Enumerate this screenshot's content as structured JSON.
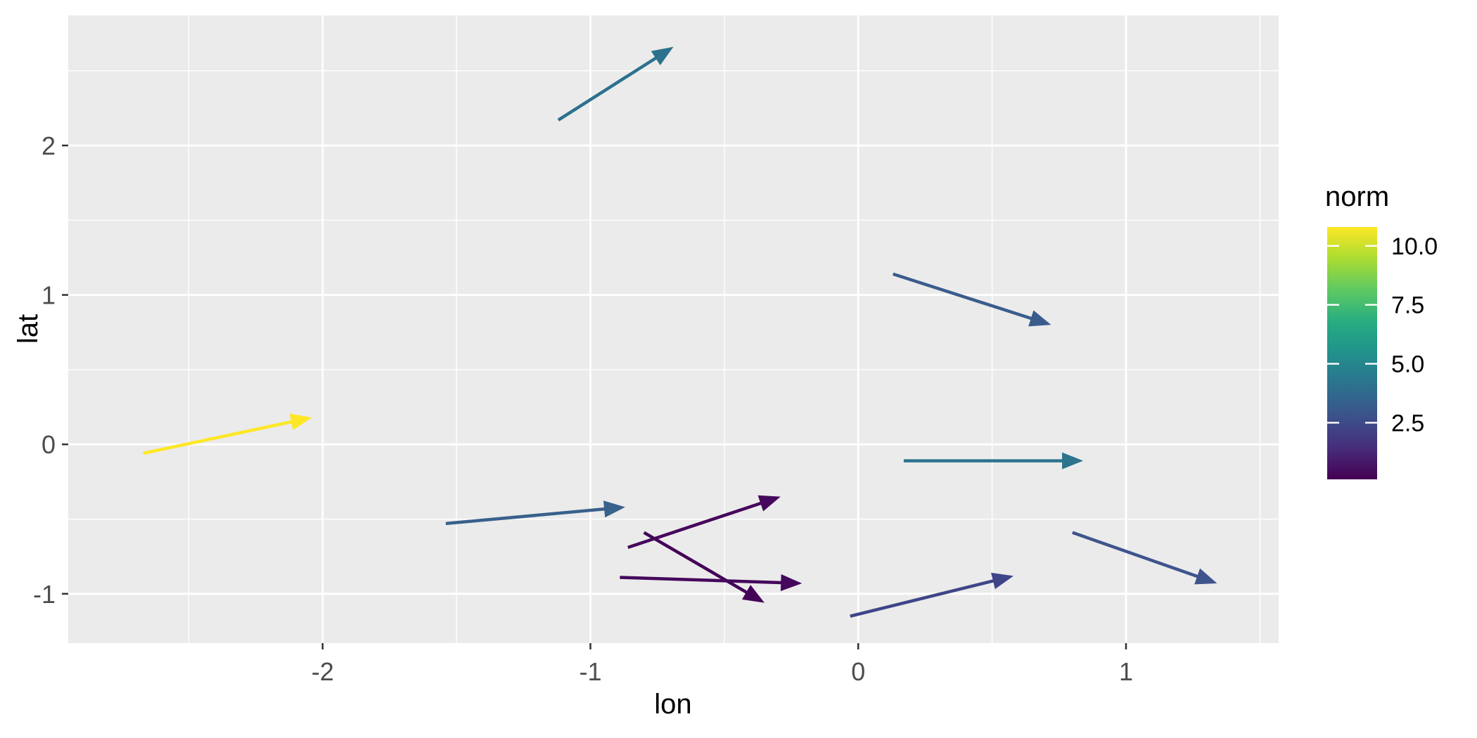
{
  "figure": {
    "panel_background": "#ebebeb",
    "grid_color": "#ffffff",
    "tick_mark_color": "#333333",
    "tick_label_color": "#4d4d4d",
    "axis_title_color": "#000000"
  },
  "chart_data": {
    "type": "line",
    "subtype": "arrow-vector-segments",
    "title": "",
    "xlabel": "lon",
    "ylabel": "lat",
    "xlim": [
      -2.95,
      1.57
    ],
    "ylim": [
      -1.33,
      2.87
    ],
    "grid": "white major and minor gridlines on grey panel",
    "x_ticks": {
      "values": [
        -2,
        -1,
        0,
        1
      ],
      "labels": [
        "-2",
        "-1",
        "0",
        "1"
      ],
      "minor": [
        -2.5,
        -1.5,
        -0.5,
        0.5,
        1.5
      ]
    },
    "y_ticks": {
      "values": [
        -1,
        0,
        1,
        2
      ],
      "labels": [
        "-1",
        "0",
        "1",
        "2"
      ],
      "minor": [
        -0.5,
        0.5,
        1.5,
        2.5
      ]
    },
    "series": [
      {
        "name": "arrow-1",
        "x1": -1.12,
        "y1": 2.17,
        "x2": -0.69,
        "y2": 2.66,
        "norm": 4.6,
        "color": "#2c718e"
      },
      {
        "name": "arrow-2",
        "x1": 0.13,
        "y1": 1.14,
        "x2": 0.72,
        "y2": 0.8,
        "norm": 3.5,
        "color": "#3a5c8c"
      },
      {
        "name": "arrow-3",
        "x1": -2.67,
        "y1": -0.06,
        "x2": -2.04,
        "y2": 0.18,
        "norm": 10.5,
        "color": "#fde725"
      },
      {
        "name": "arrow-4",
        "x1": -1.54,
        "y1": -0.53,
        "x2": -0.87,
        "y2": -0.42,
        "norm": 3.8,
        "color": "#38618c"
      },
      {
        "name": "arrow-5",
        "x1": -0.86,
        "y1": -0.69,
        "x2": -0.29,
        "y2": -0.35,
        "norm": 0.8,
        "color": "#46085c"
      },
      {
        "name": "arrow-6",
        "x1": -0.8,
        "y1": -0.59,
        "x2": -0.35,
        "y2": -1.06,
        "norm": 0.4,
        "color": "#440357"
      },
      {
        "name": "arrow-7",
        "x1": -0.89,
        "y1": -0.89,
        "x2": -0.21,
        "y2": -0.93,
        "norm": 0.7,
        "color": "#45085c"
      },
      {
        "name": "arrow-8",
        "x1": 0.17,
        "y1": -0.11,
        "x2": 0.84,
        "y2": -0.11,
        "norm": 4.7,
        "color": "#2e738e"
      },
      {
        "name": "arrow-9",
        "x1": -0.03,
        "y1": -1.15,
        "x2": 0.58,
        "y2": -0.88,
        "norm": 2.4,
        "color": "#3e4689"
      },
      {
        "name": "arrow-10",
        "x1": 0.8,
        "y1": -0.59,
        "x2": 1.34,
        "y2": -0.93,
        "norm": 3.0,
        "color": "#3f548d"
      }
    ],
    "legend": {
      "title": "norm",
      "type": "colorbar",
      "position": "right",
      "colormap": "viridis",
      "domain": [
        0.1,
        10.8
      ],
      "tick_values": [
        10.0,
        7.5,
        5.0,
        2.5
      ],
      "tick_labels": [
        "10.0",
        "7.5",
        "5.0",
        "2.5"
      ],
      "gradient_top_to_bottom": [
        "#fde725",
        "#aadc32",
        "#5ec962",
        "#27ad81",
        "#21918c",
        "#2c728e",
        "#3b528b",
        "#472d7b",
        "#440154"
      ]
    }
  }
}
